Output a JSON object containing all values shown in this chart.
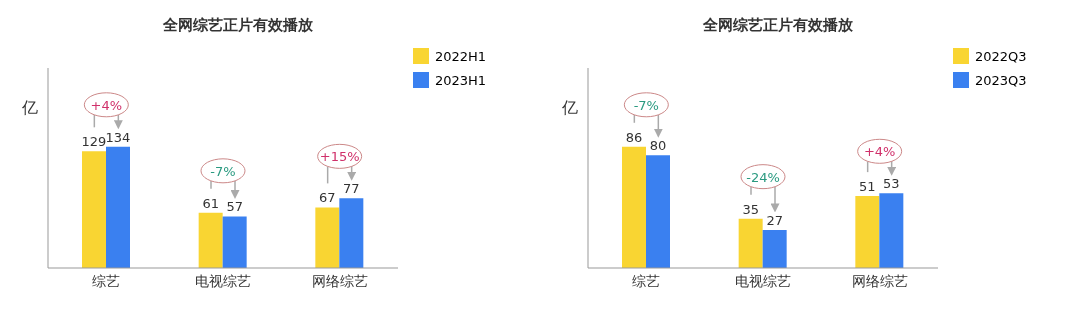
{
  "chart_data": [
    {
      "type": "bar",
      "title": "全网综艺正片有效播放",
      "ylabel": "亿",
      "categories": [
        "综艺",
        "电视综艺",
        "网络综艺"
      ],
      "series": [
        {
          "name": "2022H1",
          "color": "#f9d532",
          "values": [
            129,
            61,
            67
          ]
        },
        {
          "name": "2023H1",
          "color": "#3a80f0",
          "values": [
            134,
            57,
            77
          ]
        }
      ],
      "data_labels": true,
      "legend": "top right",
      "grid": false,
      "annotations": [
        "+4%",
        "-7%",
        "+15%"
      ]
    },
    {
      "type": "bar",
      "title": "全网综艺正片有效播放",
      "ylabel": "亿",
      "categories": [
        "综艺",
        "电视综艺",
        "网络综艺"
      ],
      "series": [
        {
          "name": "2022Q3",
          "color": "#f9d532",
          "values": [
            86,
            35,
            51
          ]
        },
        {
          "name": "2023Q3",
          "color": "#3a80f0",
          "values": [
            80,
            27,
            53
          ]
        }
      ],
      "data_labels": true,
      "legend": "top right",
      "grid": false,
      "annotations": [
        "-7%",
        "-24%",
        "+4%"
      ]
    }
  ]
}
